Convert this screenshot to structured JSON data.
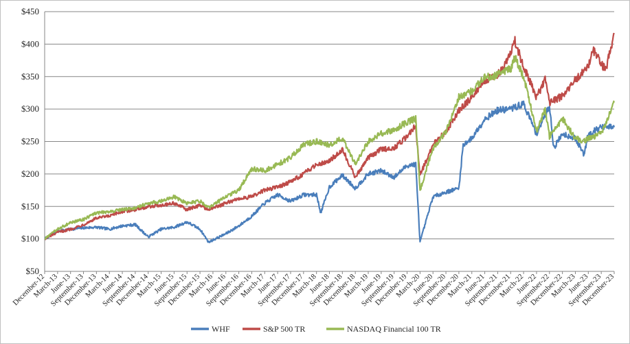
{
  "chart_data": {
    "type": "line",
    "title": "",
    "xlabel": "",
    "ylabel": "",
    "y_axis": {
      "min": 50,
      "max": 450,
      "step": 50,
      "tick_labels": [
        "$50",
        "$100",
        "$150",
        "$200",
        "$250",
        "$300",
        "$350",
        "$400",
        "$450"
      ],
      "gridlines": true
    },
    "x_axis": {
      "start": "2012-12",
      "end": "2023-12",
      "interval_months": 3,
      "tick_labels": [
        "December-12",
        "March-13",
        "June-13",
        "September-13",
        "December-13",
        "March-14",
        "June-14",
        "September-14",
        "December-14",
        "March-15",
        "June-15",
        "September-15",
        "December-15",
        "March-16",
        "June-16",
        "September-16",
        "December-16",
        "March-17",
        "June-17",
        "September-17",
        "December-17",
        "March-18",
        "June-18",
        "September-18",
        "December-18",
        "March-19",
        "June-19",
        "September-19",
        "December-19",
        "March-20",
        "June-20",
        "September-20",
        "December-20",
        "March-21",
        "June-21",
        "September-21",
        "December-21",
        "March-22",
        "June-22",
        "September-22",
        "December-22",
        "March-23",
        "June-23",
        "September-23",
        "December-23"
      ]
    },
    "legend_position": "bottom",
    "series": [
      {
        "name": "WHF",
        "color": "#4a7ebb",
        "points": [
          [
            "2012-12",
            100
          ],
          [
            "2013-03",
            112
          ],
          [
            "2013-06",
            115
          ],
          [
            "2013-09",
            117
          ],
          [
            "2013-12",
            118
          ],
          [
            "2014-03",
            115
          ],
          [
            "2014-06",
            120
          ],
          [
            "2014-09",
            122
          ],
          [
            "2014-12",
            103
          ],
          [
            "2015-03",
            115
          ],
          [
            "2015-06",
            118
          ],
          [
            "2015-09",
            126
          ],
          [
            "2015-12",
            115
          ],
          [
            "2016-02",
            95
          ],
          [
            "2016-06",
            108
          ],
          [
            "2016-09",
            120
          ],
          [
            "2016-12",
            135
          ],
          [
            "2017-03",
            155
          ],
          [
            "2017-06",
            168
          ],
          [
            "2017-09",
            158
          ],
          [
            "2017-12",
            168
          ],
          [
            "2018-03",
            168
          ],
          [
            "2018-04",
            140
          ],
          [
            "2018-06",
            180
          ],
          [
            "2018-09",
            198
          ],
          [
            "2018-12",
            178
          ],
          [
            "2019-03",
            200
          ],
          [
            "2019-06",
            205
          ],
          [
            "2019-09",
            195
          ],
          [
            "2019-12",
            213
          ],
          [
            "2020-02",
            215
          ],
          [
            "2020-03",
            95
          ],
          [
            "2020-06",
            165
          ],
          [
            "2020-09",
            172
          ],
          [
            "2020-12",
            178
          ],
          [
            "2021-01",
            245
          ],
          [
            "2021-03",
            255
          ],
          [
            "2021-06",
            285
          ],
          [
            "2021-09",
            298
          ],
          [
            "2021-12",
            300
          ],
          [
            "2022-03",
            308
          ],
          [
            "2022-06",
            262
          ],
          [
            "2022-09",
            305
          ],
          [
            "2022-10",
            240
          ],
          [
            "2022-12",
            262
          ],
          [
            "2023-03",
            255
          ],
          [
            "2023-05",
            230
          ],
          [
            "2023-06",
            262
          ],
          [
            "2023-09",
            272
          ],
          [
            "2023-12",
            272
          ]
        ]
      },
      {
        "name": "S&P 500 TR",
        "color": "#be4b48",
        "points": [
          [
            "2012-12",
            100
          ],
          [
            "2013-03",
            110
          ],
          [
            "2013-06",
            115
          ],
          [
            "2013-09",
            122
          ],
          [
            "2013-12",
            132
          ],
          [
            "2014-03",
            135
          ],
          [
            "2014-06",
            142
          ],
          [
            "2014-09",
            145
          ],
          [
            "2014-12",
            150
          ],
          [
            "2015-03",
            152
          ],
          [
            "2015-06",
            155
          ],
          [
            "2015-09",
            145
          ],
          [
            "2015-12",
            152
          ],
          [
            "2016-02",
            145
          ],
          [
            "2016-06",
            155
          ],
          [
            "2016-09",
            162
          ],
          [
            "2016-12",
            165
          ],
          [
            "2017-03",
            175
          ],
          [
            "2017-06",
            180
          ],
          [
            "2017-09",
            188
          ],
          [
            "2017-12",
            200
          ],
          [
            "2018-03",
            215
          ],
          [
            "2018-06",
            220
          ],
          [
            "2018-09",
            238
          ],
          [
            "2018-12",
            195
          ],
          [
            "2019-03",
            225
          ],
          [
            "2019-06",
            238
          ],
          [
            "2019-09",
            240
          ],
          [
            "2019-12",
            258
          ],
          [
            "2020-02",
            275
          ],
          [
            "2020-03",
            198
          ],
          [
            "2020-06",
            245
          ],
          [
            "2020-09",
            265
          ],
          [
            "2020-12",
            298
          ],
          [
            "2021-03",
            318
          ],
          [
            "2021-06",
            345
          ],
          [
            "2021-09",
            352
          ],
          [
            "2021-12",
            385
          ],
          [
            "2022-01",
            405
          ],
          [
            "2022-03",
            365
          ],
          [
            "2022-06",
            318
          ],
          [
            "2022-08",
            345
          ],
          [
            "2022-09",
            310
          ],
          [
            "2022-12",
            320
          ],
          [
            "2023-03",
            345
          ],
          [
            "2023-06",
            365
          ],
          [
            "2023-07",
            392
          ],
          [
            "2023-10",
            360
          ],
          [
            "2023-12",
            415
          ]
        ]
      },
      {
        "name": "NASDAQ Financial 100 TR",
        "color": "#98b954",
        "points": [
          [
            "2012-12",
            100
          ],
          [
            "2013-03",
            115
          ],
          [
            "2013-06",
            125
          ],
          [
            "2013-09",
            130
          ],
          [
            "2013-12",
            140
          ],
          [
            "2014-03",
            142
          ],
          [
            "2014-06",
            145
          ],
          [
            "2014-09",
            148
          ],
          [
            "2014-12",
            155
          ],
          [
            "2015-03",
            158
          ],
          [
            "2015-06",
            165
          ],
          [
            "2015-09",
            155
          ],
          [
            "2015-12",
            158
          ],
          [
            "2016-02",
            148
          ],
          [
            "2016-06",
            165
          ],
          [
            "2016-09",
            175
          ],
          [
            "2016-12",
            208
          ],
          [
            "2017-03",
            205
          ],
          [
            "2017-06",
            215
          ],
          [
            "2017-09",
            225
          ],
          [
            "2017-12",
            245
          ],
          [
            "2018-03",
            250
          ],
          [
            "2018-06",
            245
          ],
          [
            "2018-09",
            255
          ],
          [
            "2018-12",
            215
          ],
          [
            "2019-03",
            250
          ],
          [
            "2019-06",
            262
          ],
          [
            "2019-09",
            268
          ],
          [
            "2019-12",
            280
          ],
          [
            "2020-02",
            285
          ],
          [
            "2020-03",
            175
          ],
          [
            "2020-06",
            240
          ],
          [
            "2020-09",
            265
          ],
          [
            "2020-12",
            318
          ],
          [
            "2021-03",
            328
          ],
          [
            "2021-06",
            348
          ],
          [
            "2021-09",
            352
          ],
          [
            "2021-12",
            362
          ],
          [
            "2022-01",
            380
          ],
          [
            "2022-03",
            350
          ],
          [
            "2022-06",
            265
          ],
          [
            "2022-08",
            300
          ],
          [
            "2022-09",
            258
          ],
          [
            "2022-12",
            285
          ],
          [
            "2023-03",
            255
          ],
          [
            "2023-05",
            250
          ],
          [
            "2023-06",
            255
          ],
          [
            "2023-09",
            262
          ],
          [
            "2023-12",
            310
          ]
        ]
      }
    ]
  }
}
